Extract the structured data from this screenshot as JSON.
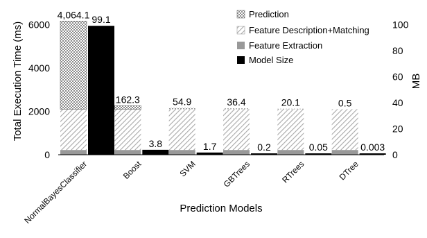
{
  "chart_data": {
    "type": "bar",
    "xlabel": "Prediction Models",
    "ylabel": "Total Execution Time (ms)",
    "y2label": "MB",
    "ylim": [
      0,
      6400
    ],
    "y2lim": [
      0,
      106.67
    ],
    "yticks": [
      "0",
      "2000",
      "4000",
      "6000"
    ],
    "yticks_values": [
      0,
      2000,
      4000,
      6000
    ],
    "y2ticks": [
      "0",
      "20",
      "40",
      "60",
      "80",
      "100"
    ],
    "y2ticks_values": [
      0,
      20,
      40,
      60,
      80,
      100
    ],
    "categories": [
      "NormalBayesClassifier",
      "Boost",
      "SVM",
      "GBTrees",
      "RTrees",
      "DTree"
    ],
    "stack_series": [
      {
        "name": "Feature Extraction",
        "values": [
          220,
          220,
          220,
          220,
          220,
          220
        ]
      },
      {
        "name": "Feature Description+Matching",
        "values": [
          1880,
          1880,
          1880,
          1880,
          1880,
          1880
        ]
      },
      {
        "name": "Prediction",
        "values": [
          4064.1,
          162.3,
          54.9,
          36.4,
          20.1,
          0.5
        ]
      }
    ],
    "prediction_labels": [
      "4,064.1",
      "162.3",
      "54.9",
      "36.4",
      "20.1",
      "0.5"
    ],
    "model_size": {
      "name": "Model Size",
      "values": [
        99.1,
        3.8,
        1.7,
        0.2,
        0.05,
        0.003
      ],
      "labels": [
        "99.1",
        "3.8",
        "1.7",
        "0.2",
        "0.05",
        "0.003"
      ]
    },
    "legend": [
      "Prediction",
      "Feature Description+Matching",
      "Feature Extraction",
      "Model Size"
    ],
    "legend_position": "top-right",
    "colors": {
      "feature_extraction": "#999999",
      "description_stripe": "#a8a8a8",
      "prediction_check": "#8c8c8c",
      "model_size": "#000000",
      "axis": "#000000"
    },
    "grid": false
  }
}
